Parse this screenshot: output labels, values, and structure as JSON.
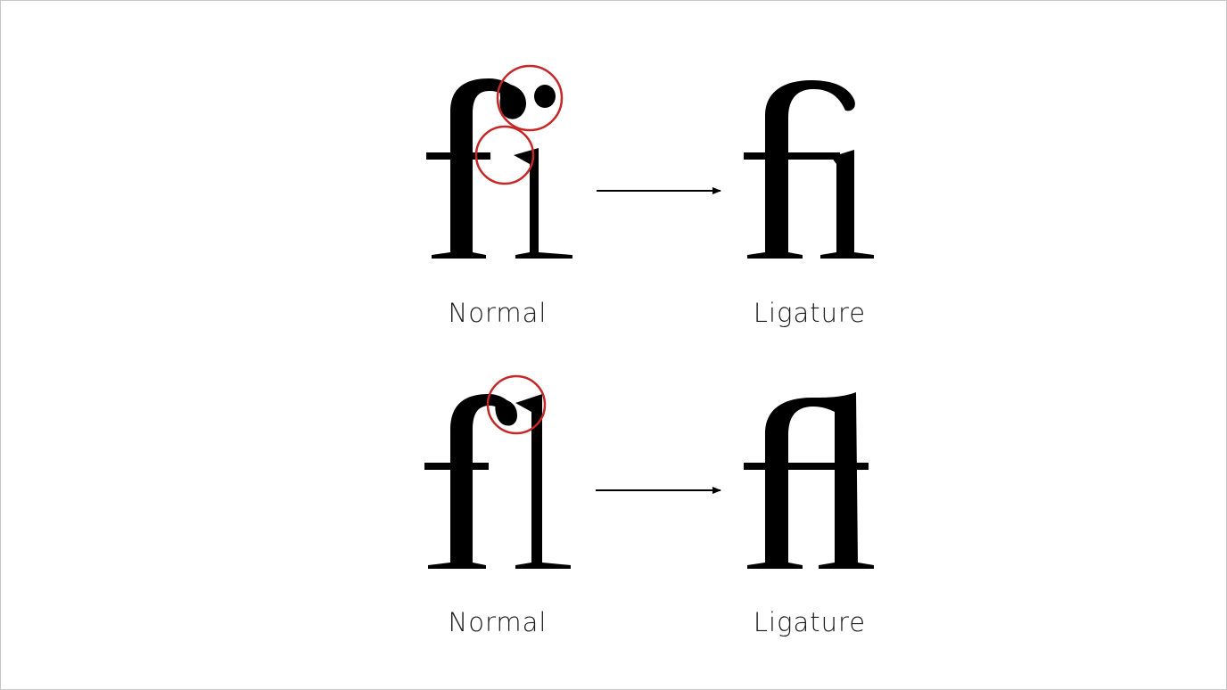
{
  "colors": {
    "glyph": "#000000",
    "highlight_circle": "#c62828",
    "arrow": "#000000",
    "caption": "#1a1a1a",
    "frame_border": "#c8c8c8"
  },
  "rows": [
    {
      "before_label": "Normal",
      "after_label": "Ligature"
    },
    {
      "before_label": "Normal",
      "after_label": "Ligature"
    }
  ]
}
